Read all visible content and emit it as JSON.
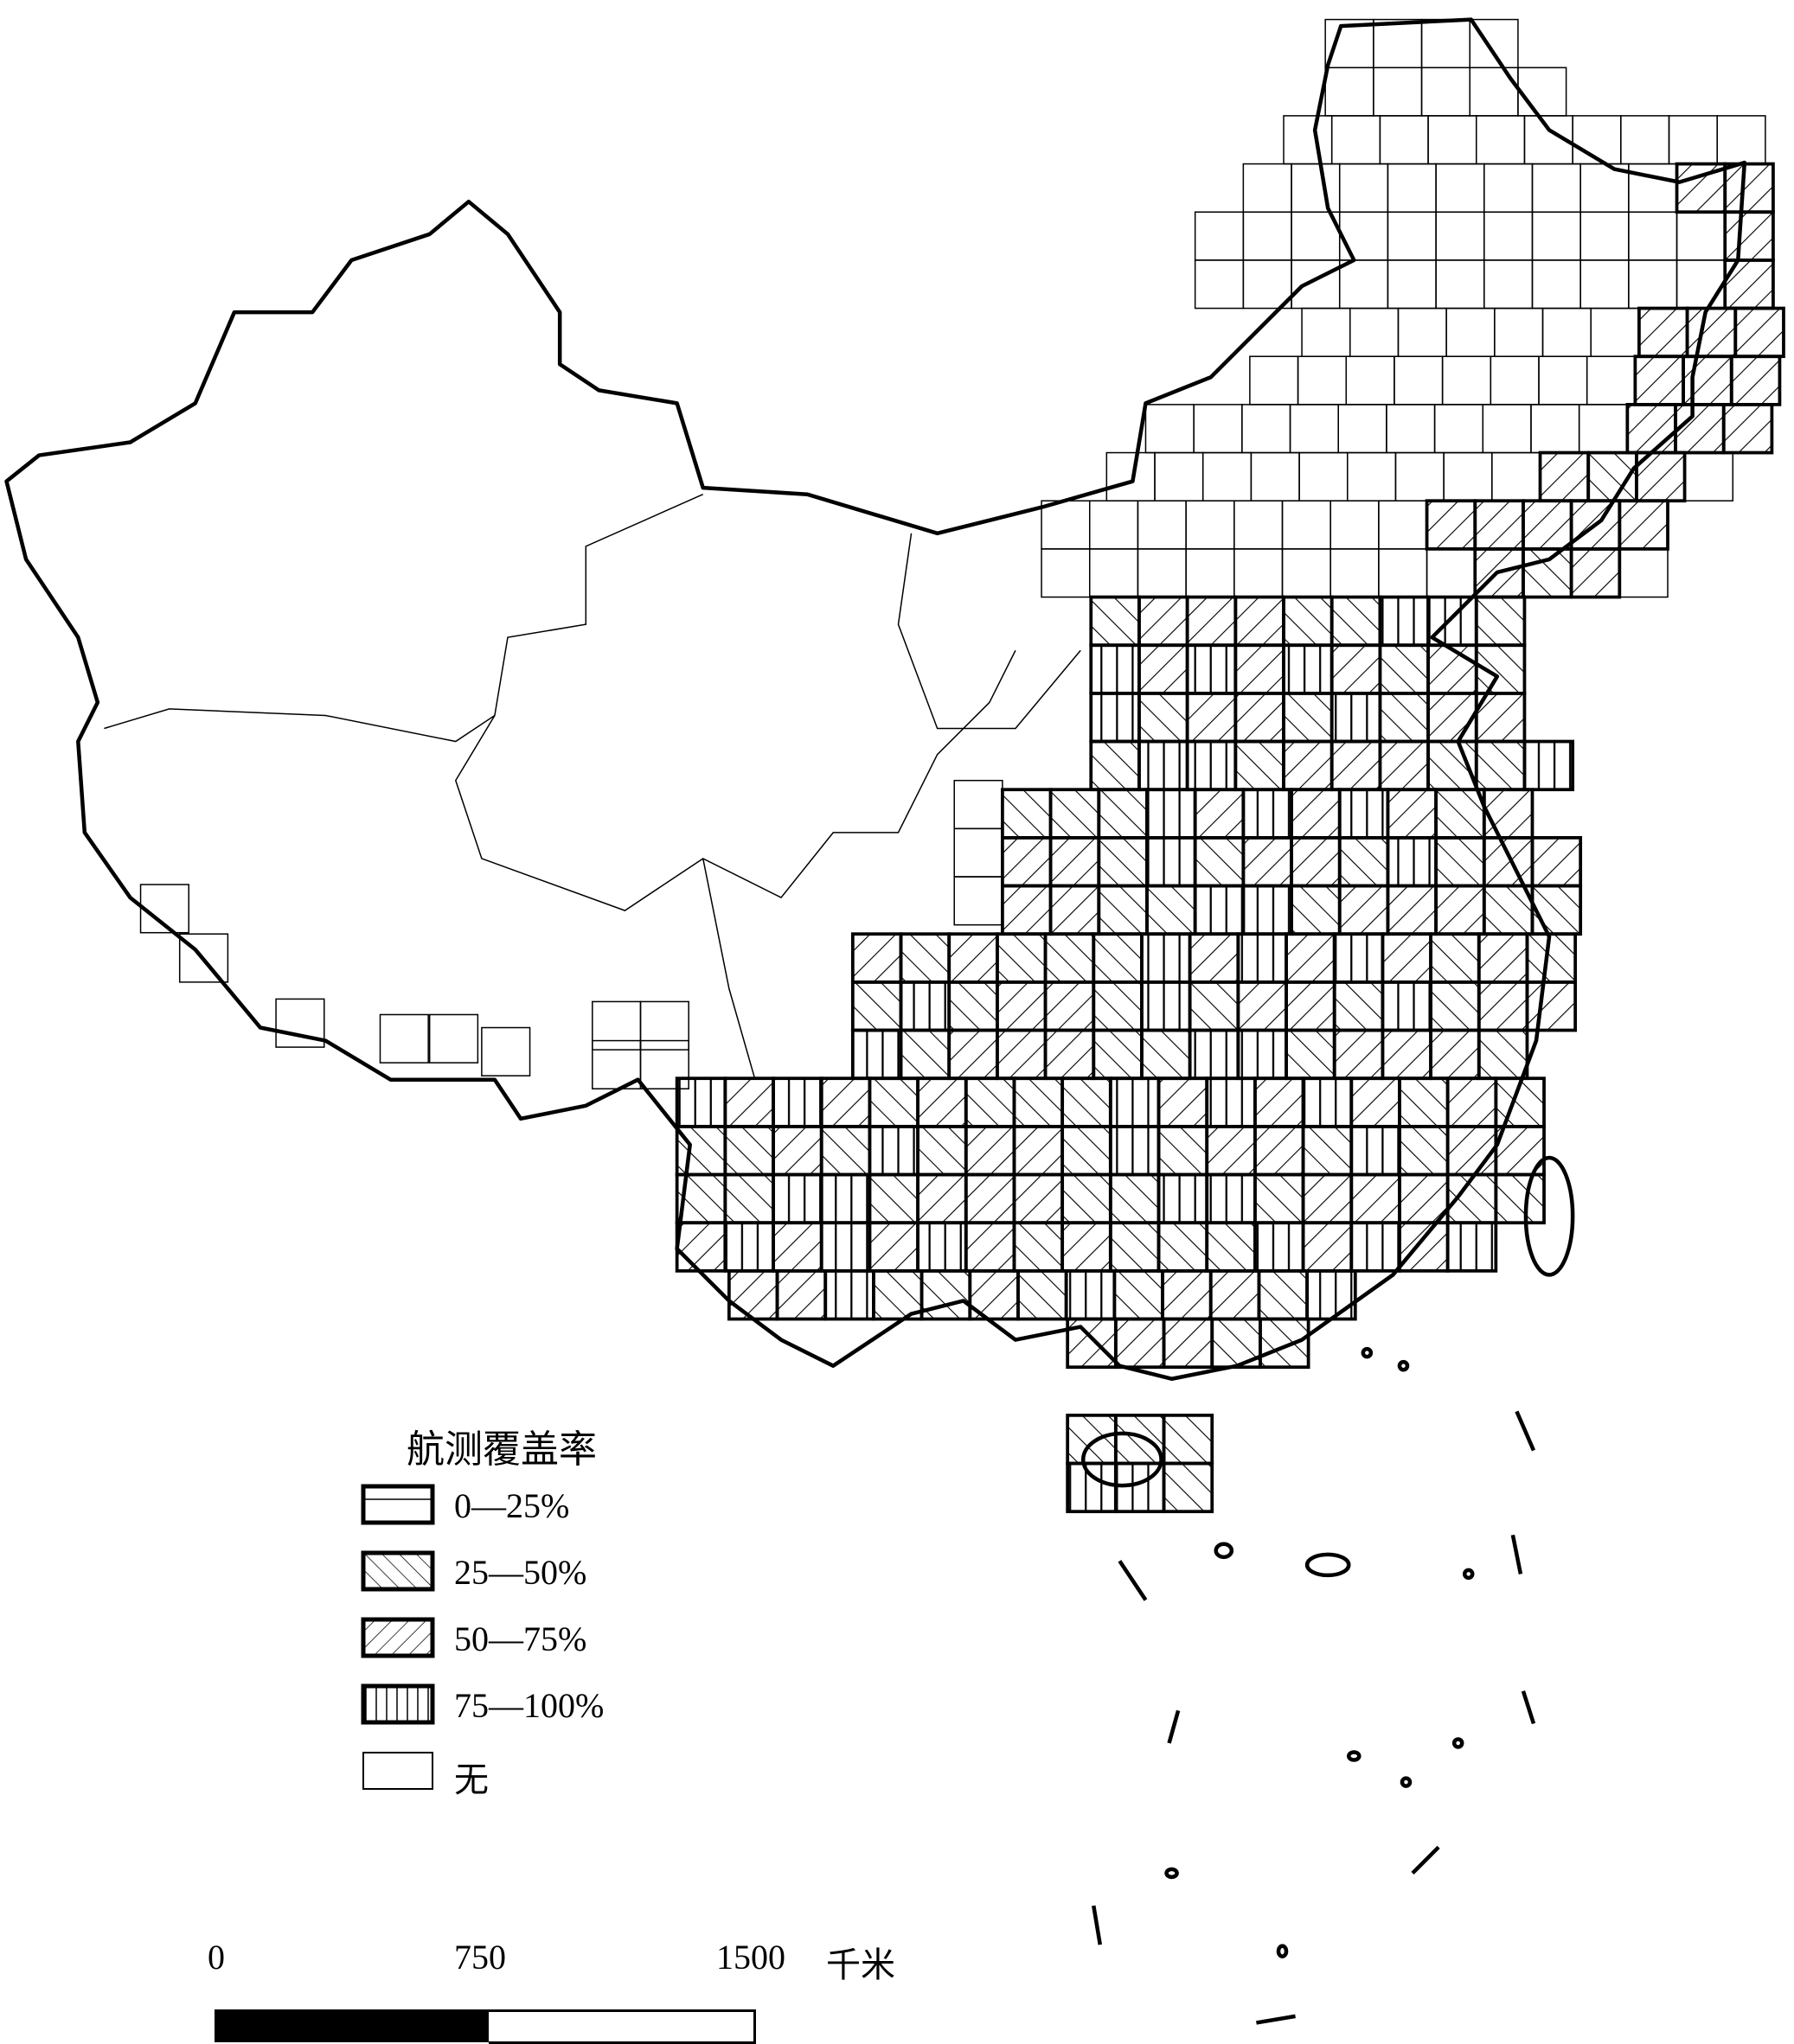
{
  "legend": {
    "title": "航测覆盖率",
    "items": [
      {
        "label": "0—25%",
        "pattern": "horizontal"
      },
      {
        "label": "25—50%",
        "pattern": "diagonal-forward"
      },
      {
        "label": "50—75%",
        "pattern": "diagonal-backward"
      },
      {
        "label": "75—100%",
        "pattern": "vertical"
      },
      {
        "label": "无",
        "pattern": "none"
      }
    ]
  },
  "scale_bar": {
    "ticks": [
      "0",
      "750",
      "1500"
    ],
    "unit": "千米"
  },
  "colors": {
    "ink": "#000000",
    "background": "#ffffff"
  }
}
